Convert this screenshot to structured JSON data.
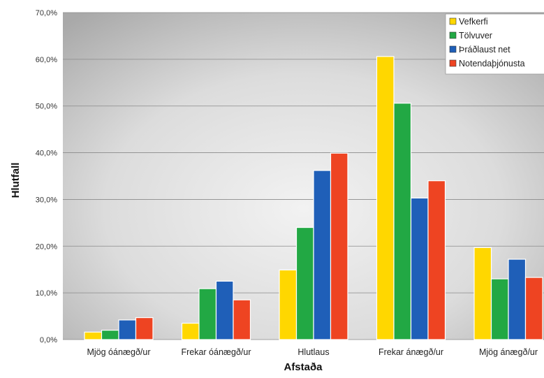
{
  "chart_data": {
    "type": "bar",
    "categories": [
      "Mjög óánægð/ur",
      "Frekar óánægð/ur",
      "Hlutlaus",
      "Frekar ánægð/ur",
      "Mjög ánægð/ur"
    ],
    "series": [
      {
        "name": "Vefkerfi",
        "color": "#FFD700",
        "values": [
          1.6,
          3.5,
          14.9,
          60.6,
          19.7
        ]
      },
      {
        "name": "Tölvuver",
        "color": "#22A844",
        "values": [
          2.0,
          10.9,
          24.0,
          50.6,
          13.0
        ]
      },
      {
        "name": "Þráðlaust net",
        "color": "#1F5FB8",
        "values": [
          4.2,
          12.5,
          36.2,
          30.3,
          17.2
        ]
      },
      {
        "name": "Notendaþjónusta",
        "color": "#EE4422",
        "values": [
          4.7,
          8.5,
          39.9,
          34.0,
          13.3
        ]
      }
    ],
    "xlabel": "Afstaða",
    "ylabel": "Hlutfall",
    "ylim": [
      0,
      70
    ],
    "yticks": [
      "0,0%",
      "10,0%",
      "20,0%",
      "30,0%",
      "40,0%",
      "50,0%",
      "60,0%",
      "70,0%"
    ],
    "grid": true,
    "legend": "top-right"
  }
}
